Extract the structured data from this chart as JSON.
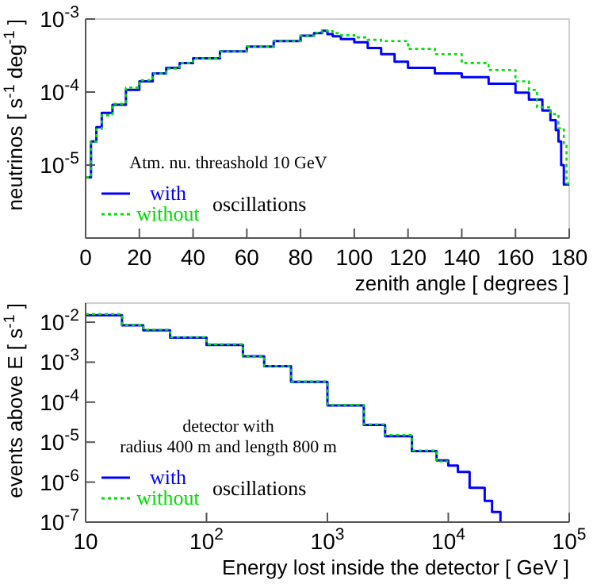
{
  "chart_data": [
    {
      "type": "step",
      "xlabel": "zenith angle [ degrees ]",
      "ylabel": "neutrinos [ s$^{-1}$ deg$^{-1}$ ]",
      "log": "y",
      "xlim": [
        0,
        180
      ],
      "ylim": [
        1e-06,
        0.001
      ],
      "xticks": [
        0,
        20,
        40,
        60,
        80,
        100,
        120,
        140,
        160,
        180
      ],
      "yticks": [
        {
          "value": 0.001,
          "label": "10$^{-3}$"
        },
        {
          "value": 0.0001,
          "label": "10$^{-4}$"
        },
        {
          "value": 1e-05,
          "label": "10$^{-5}$"
        }
      ],
      "legend": "bottom left",
      "annotations": [
        "Atm. nu. threashold 10 GeV",
        "oscillations"
      ],
      "series": [
        {
          "name": "with",
          "color": "#0000ff",
          "line_style": "solid",
          "x": [
            0,
            2,
            4,
            6,
            10,
            15,
            20,
            25,
            30,
            35,
            40,
            50,
            60,
            70,
            80,
            85,
            88,
            90,
            92,
            95,
            100,
            105,
            110,
            115,
            120,
            130,
            140,
            150,
            160,
            165,
            170,
            173,
            175,
            176,
            177,
            178,
            180
          ],
          "values": [
            6.8e-06,
            2.1e-05,
            3.3e-05,
            5.2e-05,
            6.7e-05,
            0.000107,
            0.00014,
            0.00018,
            0.000215,
            0.00025,
            0.00029,
            0.00036,
            0.00042,
            0.0005,
            0.00059,
            0.00064,
            0.00069,
            0.00062,
            0.00058,
            0.00053,
            0.00048,
            0.0004,
            0.00033,
            0.00026,
            0.000215,
            0.00018,
            0.00016,
            0.00013,
            9.8e-05,
            7.9e-05,
            5.6e-05,
            4.1e-05,
            3e-05,
            2.1e-05,
            1e-05,
            5.4e-06,
            5.4e-06
          ]
        },
        {
          "name": "without",
          "color": "#00dd00",
          "line_style": "dotted",
          "x": [
            0,
            2,
            4,
            6,
            10,
            15,
            20,
            25,
            30,
            35,
            40,
            50,
            60,
            70,
            80,
            85,
            88,
            90,
            92,
            95,
            100,
            105,
            110,
            120,
            130,
            140,
            150,
            160,
            165,
            168,
            173,
            176,
            178,
            179,
            180
          ],
          "values": [
            6.8e-06,
            2.1e-05,
            3.1e-05,
            4.8e-05,
            6.9e-05,
            0.000115,
            0.000145,
            0.00018,
            0.00021,
            0.00025,
            0.00029,
            0.00036,
            0.00042,
            0.0005,
            0.00059,
            0.00065,
            0.0007,
            0.00068,
            0.00064,
            0.0006,
            0.00056,
            0.00052,
            0.0005,
            0.00039,
            0.00033,
            0.00025,
            0.0002,
            0.00014,
            0.000107,
            6.2e-05,
            5e-05,
            3.2e-05,
            1.9e-05,
            5.6e-06,
            5.6e-06
          ]
        }
      ]
    },
    {
      "type": "step",
      "xlabel": "Energy lost inside the detector [ GeV ]",
      "ylabel": "events above E [ s$^{-1}$ ]",
      "log": "xy",
      "xlim": [
        10,
        100000
      ],
      "ylim": [
        1e-07,
        0.03
      ],
      "xticks": [
        10,
        {
          "value": 100,
          "label": "10$^{2}$"
        },
        {
          "value": 1000,
          "label": "10$^{3}$"
        },
        {
          "value": 10000,
          "label": "10$^{4}$"
        },
        {
          "value": 100000,
          "label": "10$^{5}$"
        }
      ],
      "yticks": [
        {
          "value": 0.01,
          "label": "10$^{-2}$"
        },
        {
          "value": 0.001,
          "label": "10$^{-3}$"
        },
        {
          "value": 0.0001,
          "label": "10$^{-4}$"
        },
        {
          "value": 1e-05,
          "label": "10$^{-5}$"
        },
        {
          "value": 1e-06,
          "label": "10$^{-6}$"
        },
        {
          "value": 1e-07,
          "label": "10$^{-7}$"
        }
      ],
      "legend": "bottom left",
      "annotations": [
        "detector with",
        "radius 400 m and length 800 m",
        "oscillations"
      ],
      "series": [
        {
          "name": "with",
          "color": "#0000ff",
          "line_style": "solid",
          "x": [
            10,
            20,
            30,
            50,
            100,
            200,
            300,
            500,
            1000,
            2000,
            3000,
            5000,
            8000,
            10000,
            12000,
            15000,
            20000,
            23000,
            27000
          ],
          "values": [
            0.015,
            0.0083,
            0.0063,
            0.0041,
            0.0027,
            0.0014,
            0.00079,
            0.00032,
            8.3e-05,
            2.7e-05,
            1.4e-05,
            6e-06,
            3.5e-06,
            2.6e-06,
            1.8e-06,
            7.2e-07,
            3.4e-07,
            1.8e-07,
            1e-07
          ]
        },
        {
          "name": "without",
          "color": "#00dd00",
          "line_style": "dotted",
          "x": [
            10,
            20,
            30,
            50,
            100,
            200,
            300,
            500,
            1000,
            2000,
            3000,
            5000,
            8000,
            10000
          ],
          "values": [
            0.016,
            0.0085,
            0.0065,
            0.0042,
            0.0028,
            0.0014,
            0.0008,
            0.00033,
            8.5e-05,
            2.8e-05,
            1.5e-05,
            6.2e-06,
            3.3e-06,
            3.3e-06
          ]
        }
      ]
    }
  ]
}
